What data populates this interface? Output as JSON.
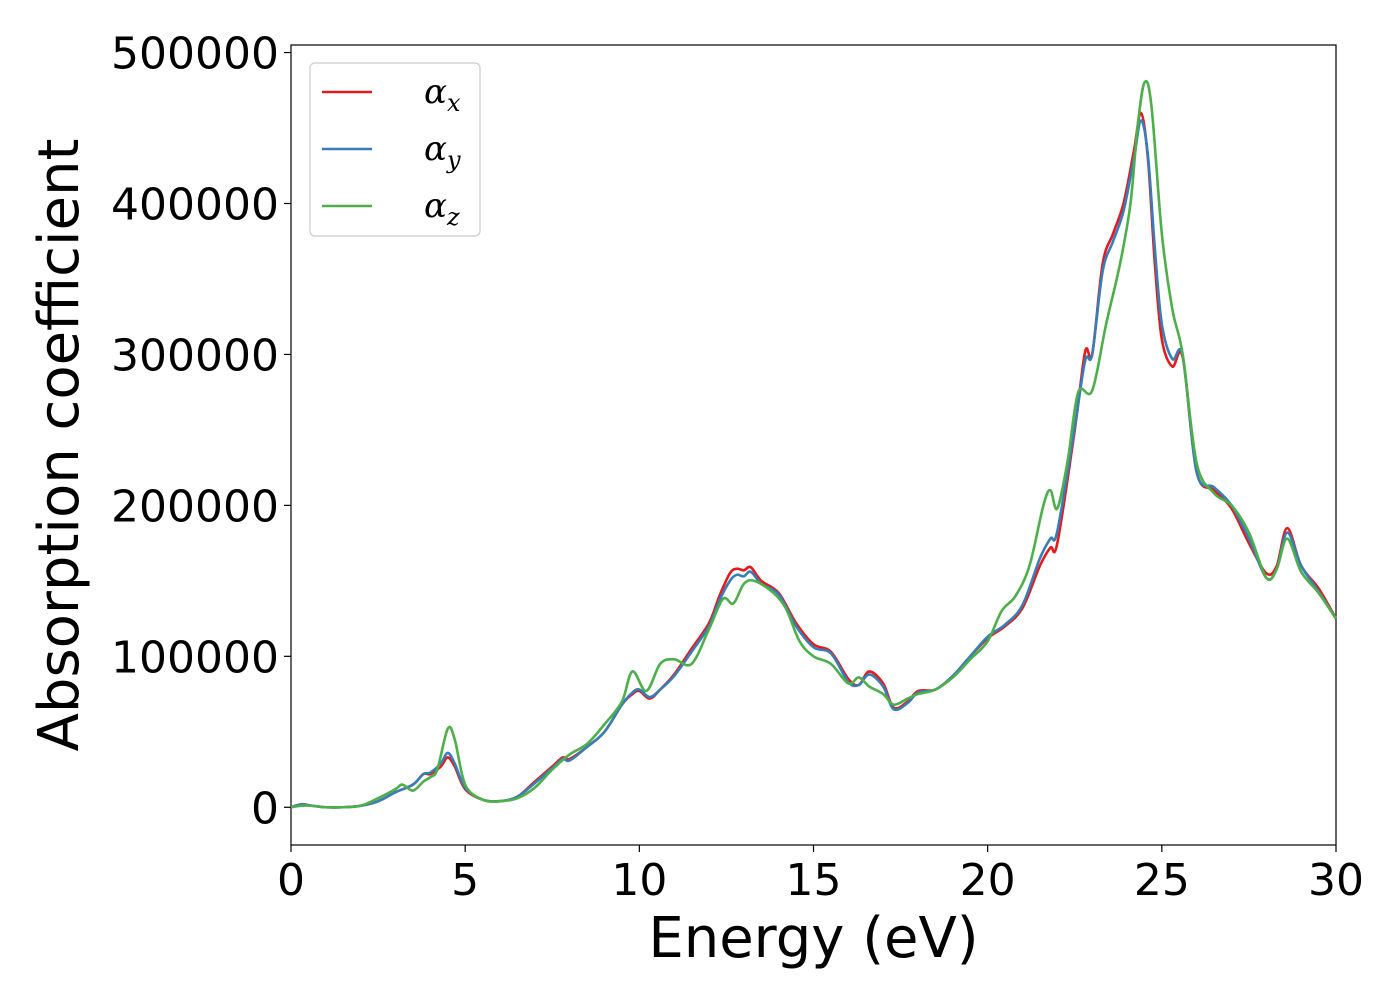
{
  "chart_data": {
    "type": "line",
    "title": "",
    "xlabel": "Energy (eV)",
    "ylabel": "Absorption coefficient",
    "xlim": [
      0,
      30
    ],
    "ylim": [
      -25000,
      505000
    ],
    "xticks": [
      0,
      5,
      10,
      15,
      20,
      25,
      30
    ],
    "yticks": [
      0,
      100000,
      200000,
      300000,
      400000,
      500000
    ],
    "grid": false,
    "legend_position": "top-left",
    "colors": {
      "alpha_x": "#e41a1c",
      "alpha_y": "#377eb8",
      "alpha_z": "#4daf4a"
    },
    "legend": [
      {
        "base": "α",
        "sub": "x",
        "key": "alpha_x"
      },
      {
        "base": "α",
        "sub": "y",
        "key": "alpha_y"
      },
      {
        "base": "α",
        "sub": "z",
        "key": "alpha_z"
      }
    ],
    "series": [
      {
        "key": "alpha_x",
        "x": [
          0,
          0.3,
          0.6,
          1,
          1.5,
          2,
          2.5,
          3,
          3.5,
          3.8,
          4,
          4.3,
          4.5,
          4.7,
          5,
          5.5,
          6,
          6.5,
          7,
          7.5,
          7.8,
          8,
          8.5,
          9,
          9.5,
          9.8,
          10,
          10.3,
          10.6,
          11,
          11.5,
          12,
          12.3,
          12.6,
          12.8,
          13,
          13.2,
          13.5,
          14,
          14.5,
          15,
          15.5,
          16,
          16.3,
          16.6,
          17,
          17.3,
          17.7,
          18,
          18.5,
          19,
          19.5,
          20,
          20.5,
          21,
          21.5,
          21.8,
          22,
          22.5,
          22.8,
          23,
          23.3,
          23.6,
          23.9,
          24.2,
          24.4,
          24.6,
          24.8,
          25,
          25.3,
          25.6,
          26,
          26.5,
          27,
          27.5,
          28,
          28.3,
          28.6,
          29,
          29.5,
          30
        ],
        "y": [
          0,
          2000,
          1000,
          0,
          0,
          1000,
          4000,
          10000,
          15000,
          22000,
          22000,
          27000,
          33000,
          27000,
          12000,
          5000,
          4000,
          7000,
          17000,
          27000,
          33000,
          32000,
          40000,
          50000,
          68000,
          75000,
          77000,
          72000,
          78000,
          88000,
          105000,
          122000,
          140000,
          155000,
          158000,
          157000,
          159000,
          150000,
          142000,
          122000,
          108000,
          103000,
          85000,
          81000,
          90000,
          82000,
          66000,
          70000,
          77000,
          78000,
          87000,
          100000,
          112000,
          120000,
          132000,
          160000,
          172000,
          175000,
          250000,
          302000,
          300000,
          360000,
          380000,
          400000,
          435000,
          460000,
          430000,
          360000,
          310000,
          292000,
          298000,
          222000,
          210000,
          198000,
          175000,
          155000,
          160000,
          185000,
          160000,
          145000,
          125000
        ]
      },
      {
        "key": "alpha_y",
        "x": [
          0,
          0.3,
          0.6,
          1,
          1.5,
          2,
          2.5,
          3,
          3.5,
          3.8,
          4,
          4.3,
          4.5,
          4.7,
          5,
          5.5,
          6,
          6.5,
          7,
          7.5,
          7.8,
          8,
          8.5,
          9,
          9.5,
          9.8,
          10,
          10.3,
          10.6,
          11,
          11.5,
          12,
          12.3,
          12.6,
          12.8,
          13,
          13.2,
          13.5,
          14,
          14.5,
          15,
          15.5,
          16,
          16.3,
          16.6,
          17,
          17.3,
          17.7,
          18,
          18.5,
          19,
          19.5,
          20,
          20.5,
          21,
          21.5,
          21.8,
          22,
          22.5,
          22.8,
          23,
          23.3,
          23.6,
          23.9,
          24.2,
          24.4,
          24.6,
          24.8,
          25,
          25.3,
          25.6,
          26,
          26.5,
          27,
          27.5,
          28,
          28.3,
          28.6,
          29,
          29.5,
          30
        ],
        "y": [
          0,
          2000,
          1000,
          0,
          0,
          1000,
          4000,
          10000,
          15000,
          22000,
          23000,
          29000,
          36000,
          29000,
          13000,
          5000,
          4000,
          7000,
          16000,
          26000,
          32000,
          31000,
          40000,
          50000,
          68000,
          76000,
          78000,
          73000,
          78000,
          87000,
          103000,
          120000,
          137000,
          150000,
          154000,
          153000,
          156000,
          148000,
          141000,
          120000,
          106000,
          102000,
          83000,
          81000,
          88000,
          80000,
          65000,
          69000,
          76000,
          78000,
          87000,
          100000,
          113000,
          121000,
          134000,
          165000,
          178000,
          183000,
          252000,
          296000,
          300000,
          355000,
          375000,
          395000,
          430000,
          455000,
          432000,
          370000,
          320000,
          297000,
          299000,
          222000,
          212000,
          200000,
          178000,
          152000,
          158000,
          182000,
          160000,
          143000,
          125000
        ]
      },
      {
        "key": "alpha_z",
        "x": [
          0,
          0.3,
          0.6,
          1,
          1.5,
          2,
          2.5,
          3,
          3.2,
          3.5,
          3.8,
          4,
          4.2,
          4.5,
          4.7,
          5,
          5.5,
          6,
          6.5,
          7,
          7.5,
          8,
          8.5,
          9,
          9.5,
          9.8,
          10.2,
          10.6,
          11,
          11.5,
          12,
          12.4,
          12.7,
          13,
          13.3,
          13.8,
          14.2,
          14.6,
          15,
          15.5,
          16,
          16.3,
          16.6,
          17,
          17.3,
          17.7,
          18,
          18.5,
          19,
          19.5,
          20,
          20.4,
          20.8,
          21.2,
          21.6,
          21.8,
          22,
          22.3,
          22.6,
          23,
          23.4,
          23.8,
          24.1,
          24.3,
          24.5,
          24.7,
          25,
          25.3,
          25.6,
          26,
          26.5,
          27,
          27.5,
          28,
          28.3,
          28.6,
          29,
          29.5,
          30
        ],
        "y": [
          0,
          1000,
          1000,
          0,
          0,
          1000,
          6000,
          12000,
          15000,
          11000,
          17000,
          20000,
          25000,
          52000,
          45000,
          15000,
          5000,
          4000,
          6000,
          13000,
          25000,
          35000,
          42000,
          55000,
          70000,
          90000,
          77000,
          95000,
          98000,
          95000,
          118000,
          138000,
          135000,
          148000,
          150000,
          143000,
          132000,
          110000,
          100000,
          95000,
          82000,
          86000,
          80000,
          75000,
          68000,
          72000,
          75000,
          78000,
          86000,
          98000,
          110000,
          130000,
          140000,
          160000,
          200000,
          210000,
          198000,
          230000,
          275000,
          276000,
          320000,
          360000,
          400000,
          450000,
          480000,
          465000,
          380000,
          330000,
          300000,
          228000,
          208000,
          200000,
          182000,
          152000,
          158000,
          178000,
          156000,
          142000,
          125000
        ]
      }
    ]
  }
}
